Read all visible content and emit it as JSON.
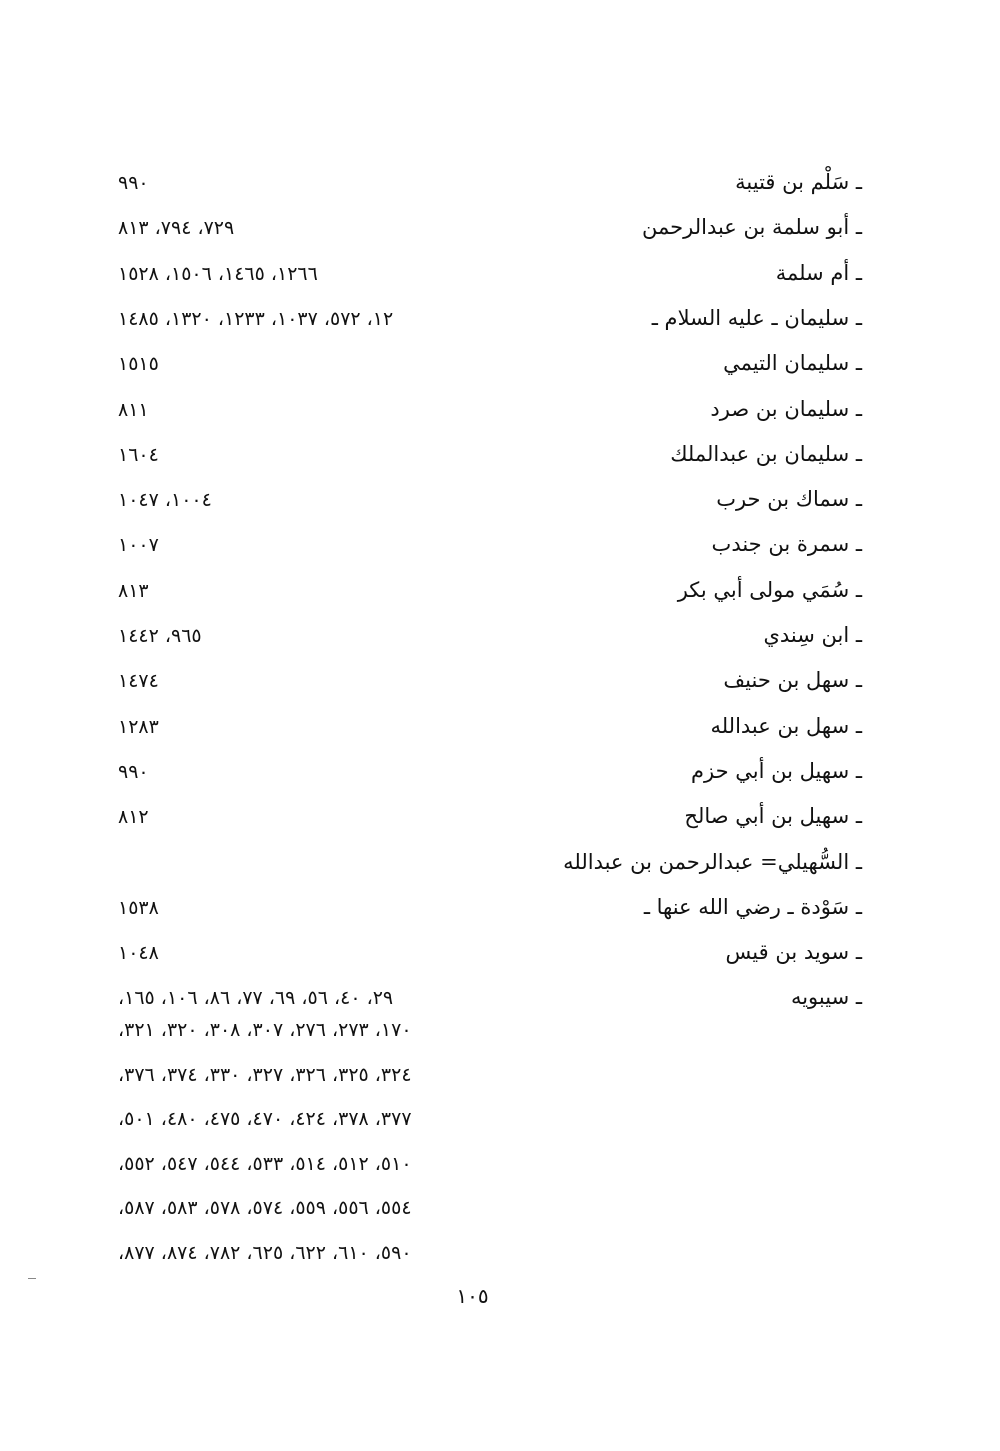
{
  "entries": [
    {
      "name": "ـ سَلْم بن قتيبة",
      "pages": "٩٩٠"
    },
    {
      "name": "ـ أبو سلمة بن عبدالرحمن",
      "pages": "٧٢٩، ٧٩٤، ٨١٣"
    },
    {
      "name": "ـ أم سلمة",
      "pages": "١٢٦٦، ١٤٦٥، ١٥٠٦، ١٥٢٨"
    },
    {
      "name": "ـ سليمان ـ عليه السلام ـ",
      "pages": "١٢، ٥٧٢، ١٠٣٧، ١٢٣٣، ١٣٢٠، ١٤٨٥"
    },
    {
      "name": "ـ سليمان التيمي",
      "pages": "١٥١٥"
    },
    {
      "name": "ـ سليمان بن صرد",
      "pages": "٨١١"
    },
    {
      "name": "ـ سليمان بن عبدالملك",
      "pages": "١٦٠٤"
    },
    {
      "name": "ـ سماك بن حرب",
      "pages": "١٠٠٤، ١٠٤٧"
    },
    {
      "name": "ـ سمرة بن جندب",
      "pages": "١٠٠٧"
    },
    {
      "name": "ـ سُمَي مولى أبي بكر",
      "pages": "٨١٣"
    },
    {
      "name": "ـ ابن سِندي",
      "pages": "٩٦٥، ١٤٤٢"
    },
    {
      "name": "ـ سهل بن حنيف",
      "pages": "١٤٧٤"
    },
    {
      "name": "ـ سهل بن عبدالله",
      "pages": "١٢٨٣"
    },
    {
      "name": "ـ سهيل بن أبي حزم",
      "pages": "٩٩٠"
    },
    {
      "name": "ـ سهيل بن أبي صالح",
      "pages": "٨١٢"
    },
    {
      "name": "ـ السُّهيلي= عبدالرحمن بن عبدالله",
      "pages": ""
    },
    {
      "name": "ـ سَوْدة ـ رضي الله عنها ـ",
      "pages": "١٥٣٨"
    },
    {
      "name": "ـ سويد بن قيس",
      "pages": "١٠٤٨"
    },
    {
      "name": "ـ سيبويه",
      "pages": "٢٩، ٤٠، ٥٦، ٦٩، ٧٧، ٨٦، ١٠٦، ١٦٥،"
    }
  ],
  "continuation_lines": [
    "١٧٠، ٢٧٣، ٢٧٦، ٣٠٧، ٣٠٨، ٣٢٠، ٣٢١،",
    "٣٢٤، ٣٢٥، ٣٢٦، ٣٢٧، ٣٣٠، ٣٧٤، ٣٧٦،",
    "٣٧٧، ٣٧٨، ٤٢٤، ٤٧٠، ٤٧٥، ٤٨٠، ٥٠١،",
    "٥١٠، ٥١٢، ٥١٤، ٥٣٣، ٥٤٤، ٥٤٧، ٥٥٢،",
    "٥٥٤، ٥٥٦، ٥٥٩، ٥٧٤، ٥٧٨، ٥٨٣، ٥٨٧،",
    "٥٩٠، ٦١٠، ٦٢٢، ٦٢٥، ٧٨٢، ٨٧٤، ٨٧٧،"
  ],
  "page_number": "١٠٥"
}
